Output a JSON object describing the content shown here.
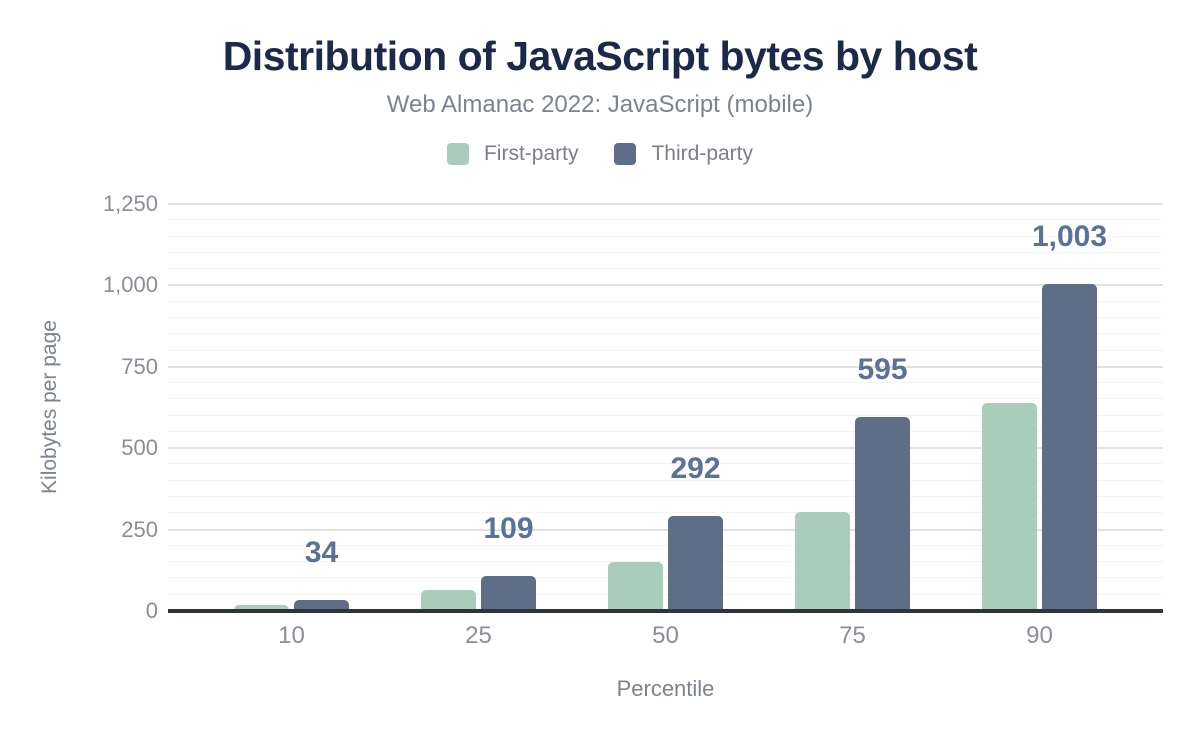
{
  "header": {
    "title": "Distribution of JavaScript bytes by host",
    "subtitle": "Web Almanac 2022: JavaScript (mobile)"
  },
  "legend": {
    "items": [
      {
        "label": "First-party",
        "color": "#a9ccbb"
      },
      {
        "label": "Third-party",
        "color": "#5e6e89"
      }
    ]
  },
  "colors": {
    "title": "#1c2a49",
    "subtitle": "#7b838e",
    "tick_labels": "#8a8f97",
    "grid_major": "#e1e1e1",
    "grid_minor": "#f4f4f4",
    "axis_line": "#2f343a",
    "first_party": "#a9ccbb",
    "third_party": "#5e6e89",
    "data_label": "#5a7198"
  },
  "chart_data": {
    "type": "bar",
    "title": "Distribution of JavaScript bytes by host",
    "subtitle": "Web Almanac 2022: JavaScript (mobile)",
    "xlabel": "Percentile",
    "ylabel": "Kilobytes per page",
    "categories": [
      "10",
      "25",
      "50",
      "75",
      "90"
    ],
    "series": [
      {
        "name": "First-party",
        "color": "#a9ccbb",
        "values": [
          20,
          65,
          150,
          305,
          640
        ],
        "data_labels": []
      },
      {
        "name": "Third-party",
        "color": "#5e6e89",
        "values": [
          34,
          109,
          292,
          595,
          1003
        ],
        "data_labels": [
          "34",
          "109",
          "292",
          "595",
          "1,003"
        ],
        "data_label_color": "#5a7198"
      }
    ],
    "ylim": [
      0,
      1250
    ],
    "yticks": [
      {
        "value": 0,
        "label": "0"
      },
      {
        "value": 250,
        "label": "250"
      },
      {
        "value": 500,
        "label": "500"
      },
      {
        "value": 750,
        "label": "750"
      },
      {
        "value": 1000,
        "label": "1,000"
      },
      {
        "value": 1250,
        "label": "1,250"
      }
    ],
    "minor_grid_step": 50,
    "grid": "horizontal",
    "legend_position": "top"
  }
}
